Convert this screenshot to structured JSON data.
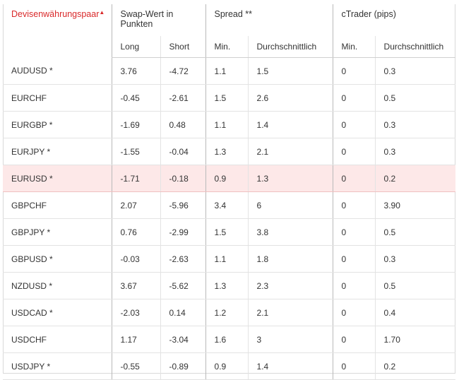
{
  "headers": {
    "pair": "Devisenwährungspaar",
    "swap_group_line1": "Swap-Wert in",
    "swap_group_line2": "Punkten",
    "spread_group": "Spread **",
    "ctrader_group": "cTrader (pips)",
    "long": "Long",
    "short": "Short",
    "spread_min": "Min.",
    "spread_avg": "Durchschnittlich",
    "ctrader_min": "Min.",
    "ctrader_avg": "Durchschnittlich"
  },
  "rows": [
    {
      "pair": "AUDUSD *",
      "long": "3.76",
      "short": "-4.72",
      "spread_min": "1.1",
      "spread_avg": "1.5",
      "ct_min": "0",
      "ct_avg": "0.3"
    },
    {
      "pair": "EURCHF",
      "long": "-0.45",
      "short": "-2.61",
      "spread_min": "1.5",
      "spread_avg": "2.6",
      "ct_min": "0",
      "ct_avg": "0.5"
    },
    {
      "pair": "EURGBP *",
      "long": "-1.69",
      "short": "0.48",
      "spread_min": "1.1",
      "spread_avg": "1.4",
      "ct_min": "0",
      "ct_avg": "0.3"
    },
    {
      "pair": "EURJPY *",
      "long": "-1.55",
      "short": "-0.04",
      "spread_min": "1.3",
      "spread_avg": "2.1",
      "ct_min": "0",
      "ct_avg": "0.3"
    },
    {
      "pair": "EURUSD *",
      "long": "-1.71",
      "short": "-0.18",
      "spread_min": "0.9",
      "spread_avg": "1.3",
      "ct_min": "0",
      "ct_avg": "0.2"
    },
    {
      "pair": "GBPCHF",
      "long": "2.07",
      "short": "-5.96",
      "spread_min": "3.4",
      "spread_avg": "6",
      "ct_min": "0",
      "ct_avg": "3.90"
    },
    {
      "pair": "GBPJPY *",
      "long": "0.76",
      "short": "-2.99",
      "spread_min": "1.5",
      "spread_avg": "3.8",
      "ct_min": "0",
      "ct_avg": "0.5"
    },
    {
      "pair": "GBPUSD *",
      "long": "-0.03",
      "short": "-2.63",
      "spread_min": "1.1",
      "spread_avg": "1.8",
      "ct_min": "0",
      "ct_avg": "0.3"
    },
    {
      "pair": "NZDUSD *",
      "long": "3.67",
      "short": "-5.62",
      "spread_min": "1.3",
      "spread_avg": "2.3",
      "ct_min": "0",
      "ct_avg": "0.5"
    },
    {
      "pair": "USDCAD *",
      "long": "-2.03",
      "short": "0.14",
      "spread_min": "1.2",
      "spread_avg": "2.1",
      "ct_min": "0",
      "ct_avg": "0.4"
    },
    {
      "pair": "USDCHF",
      "long": "1.17",
      "short": "-3.04",
      "spread_min": "1.6",
      "spread_avg": "3",
      "ct_min": "0",
      "ct_avg": "1.70"
    },
    {
      "pair": "USDJPY *",
      "long": "-0.55",
      "short": "-0.89",
      "spread_min": "0.9",
      "spread_avg": "1.4",
      "ct_min": "0",
      "ct_avg": "0.2"
    }
  ],
  "highlight_row": 4,
  "colors": {
    "sort_header": "#d9292a",
    "highlight_bg": "#fde8e8"
  }
}
